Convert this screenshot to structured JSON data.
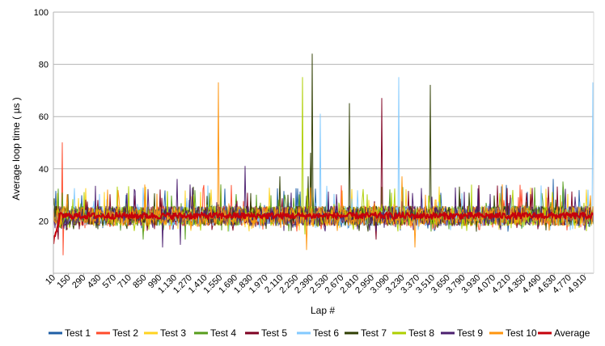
{
  "chart_data": {
    "type": "line",
    "title": "",
    "xlabel": "Lap #",
    "ylabel": "Average loop time ( µs )",
    "ylim": [
      0,
      100
    ],
    "yticks": [
      20,
      40,
      60,
      80,
      100
    ],
    "xlim": [
      10,
      4995
    ],
    "xtick_values": [
      10,
      150,
      290,
      430,
      570,
      710,
      850,
      990,
      1130,
      1270,
      1410,
      1550,
      1690,
      1830,
      1970,
      2110,
      2250,
      2390,
      2530,
      2670,
      2810,
      2950,
      3090,
      3230,
      3370,
      3510,
      3650,
      3790,
      3930,
      4070,
      4210,
      4350,
      4490,
      4630,
      4770,
      4910
    ],
    "xtick_labels": [
      "10",
      "150",
      "290",
      "430",
      "570",
      "710",
      "850",
      "990",
      "1.130",
      "1.270",
      "1.410",
      "1.550",
      "1.690",
      "1.830",
      "1.970",
      "2.110",
      "2.250",
      "2.390",
      "2.530",
      "2.670",
      "2.810",
      "2.950",
      "3.090",
      "3.230",
      "3.370",
      "3.510",
      "3.650",
      "3.790",
      "3.930",
      "4.070",
      "4.210",
      "4.350",
      "4.490",
      "4.630",
      "4.770",
      "4.910"
    ],
    "grid": true,
    "legend_position": "bottom",
    "baseline": 22,
    "series": [
      {
        "name": "Test 1",
        "color": "#1f5fa6",
        "spikes": [
          [
            1030,
            27
          ],
          [
            1955,
            26
          ],
          [
            4620,
            36
          ]
        ]
      },
      {
        "name": "Test 2",
        "color": "#ff4b2b",
        "spikes": [
          [
            90,
            50
          ],
          [
            100,
            7
          ]
        ]
      },
      {
        "name": "Test 3",
        "color": "#ffd320",
        "spikes": [
          [
            480,
            31
          ],
          [
            1450,
            30
          ],
          [
            2920,
            28
          ]
        ]
      },
      {
        "name": "Test 4",
        "color": "#579d1c",
        "spikes": [
          [
            840,
            13
          ],
          [
            4710,
            35
          ],
          [
            1230,
            13
          ]
        ]
      },
      {
        "name": "Test 5",
        "color": "#7e0021",
        "spikes": [
          [
            3040,
            67
          ],
          [
            2990,
            13
          ],
          [
            55,
            13
          ]
        ]
      },
      {
        "name": "Test 6",
        "color": "#83caff",
        "spikes": [
          [
            2470,
            61
          ],
          [
            3200,
            75
          ],
          [
            4990,
            73
          ]
        ]
      },
      {
        "name": "Test 7",
        "color": "#314004",
        "spikes": [
          [
            2360,
            37
          ],
          [
            2380,
            46
          ],
          [
            2395,
            84
          ],
          [
            2745,
            65
          ],
          [
            3490,
            72
          ],
          [
            2100,
            37
          ]
        ]
      },
      {
        "name": "Test 8",
        "color": "#aecf00",
        "spikes": [
          [
            2310,
            75
          ],
          [
            2330,
            15
          ]
        ]
      },
      {
        "name": "Test 9",
        "color": "#4b1f6f",
        "spikes": [
          [
            1780,
            41
          ],
          [
            1150,
            36
          ],
          [
            1020,
            10
          ],
          [
            1180,
            11
          ]
        ]
      },
      {
        "name": "Test 10",
        "color": "#ff950e",
        "spikes": [
          [
            1535,
            73
          ],
          [
            3225,
            37
          ],
          [
            3345,
            10
          ],
          [
            2345,
            9
          ]
        ]
      },
      {
        "name": "Average",
        "color": "#c5000b",
        "spikes": []
      }
    ]
  }
}
